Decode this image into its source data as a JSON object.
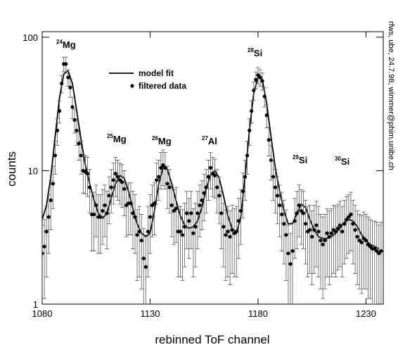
{
  "chart_data": {
    "type": "scatter",
    "x_label": "rebinned ToF channel",
    "y_label": "counts",
    "side_note": "rfws, ube, 24.7.98, wimmer@phim.unibe.ch",
    "log_y": true,
    "xlim": [
      1080,
      1238
    ],
    "ylim": [
      1,
      110
    ],
    "xticks": [
      1080,
      1130,
      1180,
      1230
    ],
    "yticks": [
      1,
      10,
      100
    ],
    "legend": "top-center",
    "annotations": [
      {
        "mass": "24",
        "element": "Mg"
      },
      {
        "mass": "25",
        "element": "Mg"
      },
      {
        "mass": "26",
        "element": "Mg"
      },
      {
        "mass": "27",
        "element": "Al"
      },
      {
        "mass": "28",
        "element": "Si"
      },
      {
        "mass": "29",
        "element": "Si"
      },
      {
        "mass": "30",
        "element": "Si"
      }
    ],
    "series": [
      {
        "name": "model fit",
        "type": "line",
        "color": "#000000",
        "x": [
          1080,
          1082,
          1084,
          1086,
          1088,
          1090,
          1092,
          1094,
          1096,
          1098,
          1100,
          1102,
          1104,
          1106,
          1108,
          1110,
          1112,
          1114,
          1116,
          1118,
          1120,
          1122,
          1124,
          1126,
          1128,
          1130,
          1132,
          1134,
          1136,
          1138,
          1140,
          1142,
          1144,
          1146,
          1148,
          1150,
          1152,
          1154,
          1156,
          1158,
          1160,
          1162,
          1164,
          1166,
          1168,
          1170,
          1172,
          1174,
          1176,
          1178,
          1180,
          1182,
          1184,
          1186,
          1188,
          1190,
          1192,
          1194,
          1196,
          1198,
          1200,
          1202,
          1204,
          1206,
          1208,
          1210,
          1212,
          1214,
          1216,
          1218,
          1220,
          1222,
          1224,
          1226,
          1228,
          1230,
          1232,
          1234,
          1236
        ],
        "values": [
          4.3,
          5.5,
          9,
          18,
          35,
          53,
          56,
          45,
          28,
          17,
          11,
          8,
          6,
          4.8,
          4.4,
          4.8,
          6.2,
          8,
          9.2,
          8.8,
          7,
          5.2,
          4,
          3.4,
          3.2,
          3.4,
          5,
          8,
          10.5,
          10.2,
          8,
          6,
          4.6,
          3.9,
          3.7,
          3.8,
          4.2,
          5.3,
          7.3,
          9.3,
          10,
          8.8,
          6.5,
          4.6,
          3.7,
          3.4,
          4.5,
          9,
          20,
          38,
          50,
          48,
          32,
          18,
          10.5,
          7,
          5,
          4,
          4,
          4.8,
          5.6,
          5.3,
          4.3,
          3.6,
          3.2,
          3.1,
          3.1,
          3.2,
          3.4,
          3.7,
          4.1,
          4.3,
          4.2,
          3.8,
          3.3,
          3,
          2.8,
          2.7,
          2.6
        ]
      },
      {
        "name": "filtered data",
        "type": "scatter",
        "color": "#000000",
        "x": [
          1080,
          1081,
          1082,
          1083,
          1084,
          1085,
          1086,
          1087,
          1088,
          1089,
          1090,
          1091,
          1092,
          1093,
          1094,
          1095,
          1096,
          1097,
          1098,
          1099,
          1100,
          1101,
          1102,
          1103,
          1104,
          1105,
          1106,
          1107,
          1108,
          1109,
          1110,
          1111,
          1112,
          1113,
          1114,
          1115,
          1116,
          1117,
          1118,
          1119,
          1120,
          1121,
          1122,
          1123,
          1124,
          1125,
          1126,
          1127,
          1128,
          1129,
          1130,
          1131,
          1132,
          1133,
          1134,
          1135,
          1136,
          1137,
          1138,
          1139,
          1140,
          1141,
          1142,
          1143,
          1144,
          1145,
          1146,
          1147,
          1148,
          1149,
          1150,
          1151,
          1152,
          1153,
          1154,
          1155,
          1156,
          1157,
          1158,
          1159,
          1160,
          1161,
          1162,
          1163,
          1164,
          1165,
          1166,
          1167,
          1168,
          1169,
          1170,
          1171,
          1172,
          1173,
          1174,
          1175,
          1176,
          1177,
          1178,
          1179,
          1180,
          1181,
          1182,
          1183,
          1184,
          1185,
          1186,
          1187,
          1188,
          1189,
          1190,
          1191,
          1192,
          1193,
          1194,
          1195,
          1196,
          1197,
          1198,
          1199,
          1200,
          1201,
          1202,
          1203,
          1204,
          1205,
          1206,
          1207,
          1208,
          1209,
          1210,
          1211,
          1212,
          1213,
          1214,
          1215,
          1216,
          1217,
          1218,
          1219,
          1220,
          1221,
          1222,
          1223,
          1224,
          1225,
          1226,
          1227,
          1228,
          1229,
          1230,
          1231,
          1232,
          1233,
          1234,
          1235,
          1236,
          1237
        ],
        "values": [
          2.4,
          2.7,
          3.5,
          4.5,
          6,
          8,
          13,
          20,
          28,
          45,
          63,
          63,
          50,
          42,
          30,
          24,
          20,
          16,
          13,
          10,
          9.8,
          9.5,
          7.5,
          4.7,
          4.7,
          5.5,
          4.5,
          4.5,
          5,
          5.5,
          4.8,
          6.5,
          7.5,
          8.5,
          9.5,
          9,
          8.5,
          8.2,
          7.3,
          5.5,
          5.7,
          5.7,
          4.8,
          4.5,
          3.3,
          3.5,
          3,
          2.2,
          1.9,
          3.5,
          4.5,
          5.5,
          5.7,
          8.5,
          9,
          10.5,
          11,
          10.5,
          8,
          7.5,
          5.5,
          5,
          5.2,
          3.5,
          3.5,
          3.3,
          3.8,
          4.8,
          4.2,
          4.8,
          3.4,
          3.8,
          4.8,
          5.5,
          6,
          6.8,
          7.5,
          9,
          10.5,
          9.5,
          9.2,
          7.5,
          6.5,
          4.8,
          3.8,
          3.3,
          3.5,
          3.2,
          3.6,
          3.4,
          3.5,
          4.2,
          5,
          7,
          9,
          13,
          20,
          28,
          40,
          48,
          52,
          50,
          47,
          36,
          26,
          17,
          12,
          9,
          7.5,
          6.5,
          5.5,
          4.7,
          4,
          3.3,
          2.4,
          2,
          2.5,
          4.2,
          4.8,
          5.5,
          5,
          4.8,
          4,
          3.5,
          3.6,
          3.2,
          3.6,
          3.9,
          3.5,
          3,
          2.8,
          3,
          3.4,
          3.2,
          3.4,
          3.6,
          3.5,
          3.7,
          3.9,
          3.5,
          4,
          4.3,
          4.5,
          4.7,
          4,
          3.6,
          3.2,
          3,
          2.9,
          3.1,
          3,
          2.8,
          2.7,
          2.6,
          2.6,
          2.5,
          2.4,
          2.5
        ],
        "errors": [
          1.5,
          1.6,
          1.9,
          2.1,
          2.4,
          2.8,
          3.6,
          4.5,
          5.3,
          6.7,
          7.9,
          7.9,
          7.1,
          6.5,
          5.5,
          4.9,
          4.5,
          4,
          3.6,
          3.2,
          3.1,
          3.1,
          2.7,
          2.2,
          2.2,
          2.3,
          2.1,
          2.1,
          2.2,
          2.3,
          2.2,
          2.5,
          2.7,
          2.9,
          3.1,
          3,
          2.9,
          2.9,
          2.7,
          2.3,
          2.4,
          2.4,
          2.2,
          2.1,
          1.8,
          1.9,
          1.7,
          1.5,
          1.4,
          1.9,
          2.1,
          2.3,
          2.4,
          2.9,
          3,
          3.2,
          3.3,
          3.2,
          2.8,
          2.7,
          2.3,
          2.2,
          2.3,
          1.9,
          1.9,
          1.8,
          1.9,
          2.2,
          2,
          2.2,
          1.8,
          1.9,
          2.2,
          2.3,
          2.4,
          2.6,
          2.7,
          3,
          3.2,
          3.1,
          3,
          2.7,
          2.5,
          2.2,
          1.9,
          1.8,
          1.9,
          1.8,
          1.9,
          1.8,
          1.9,
          2,
          2.2,
          2.6,
          3,
          3.6,
          4.5,
          5.3,
          6.3,
          6.9,
          7.2,
          7.1,
          6.9,
          6,
          5.1,
          4.1,
          3.5,
          3,
          2.7,
          2.5,
          2.3,
          2.2,
          2,
          1.8,
          1.5,
          1.4,
          1.6,
          2,
          2.2,
          2.3,
          2.2,
          2.2,
          2,
          1.9,
          1.9,
          1.8,
          1.9,
          2,
          1.9,
          1.7,
          1.7,
          1.7,
          1.8,
          1.8,
          1.8,
          1.9,
          1.9,
          1.9,
          2,
          1.9,
          2,
          2.1,
          2.1,
          2.2,
          2,
          1.9,
          1.8,
          1.7,
          1.7,
          1.8,
          1.7,
          1.7,
          1.6,
          1.6,
          1.6,
          1.6,
          1.5,
          1.6
        ]
      }
    ]
  }
}
